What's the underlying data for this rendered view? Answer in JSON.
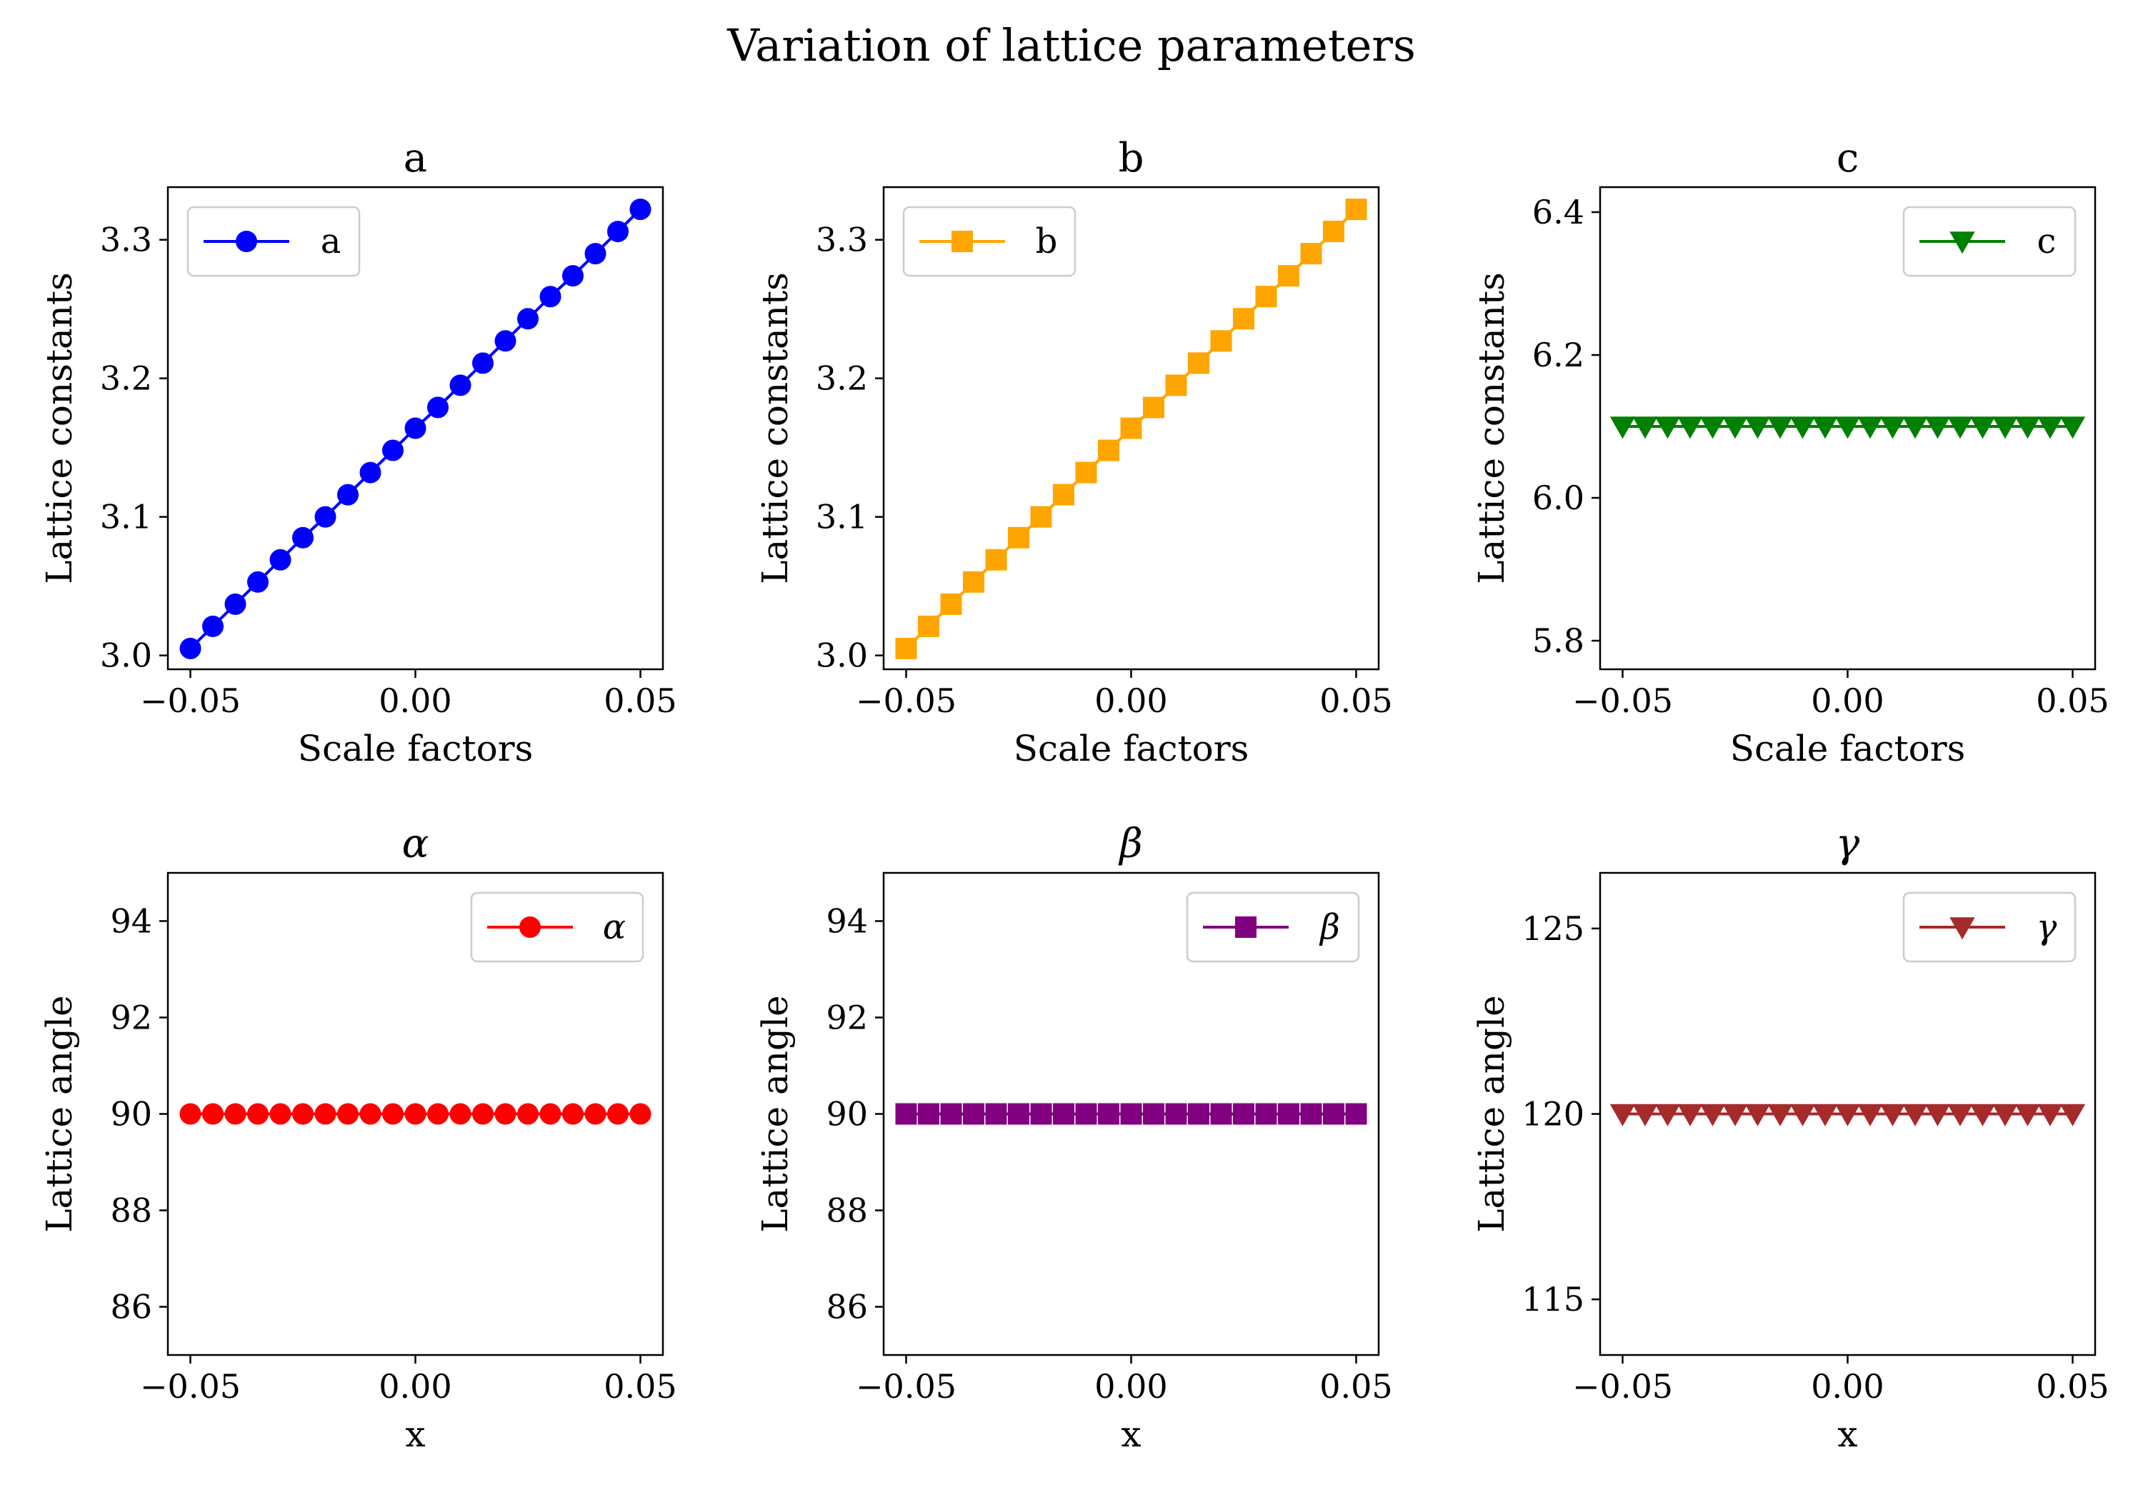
{
  "figure": {
    "suptitle": "Variation of lattice parameters"
  },
  "chart_data": [
    {
      "type": "line",
      "title": "a",
      "xlabel": "Scale factors",
      "ylabel": "Lattice constants",
      "xlim": [
        -0.055,
        0.055
      ],
      "ylim": [
        2.99,
        3.338
      ],
      "xticks": [
        "−0.05",
        "0.00",
        "0.05"
      ],
      "xtick_values": [
        -0.05,
        0.0,
        0.05
      ],
      "yticks": [
        "3.0",
        "3.1",
        "3.2",
        "3.3"
      ],
      "ytick_values": [
        3.0,
        3.1,
        3.2,
        3.3
      ],
      "legend_position": "upper-left",
      "x": [
        -0.05,
        -0.045,
        -0.04,
        -0.035,
        -0.03,
        -0.025,
        -0.02,
        -0.015,
        -0.01,
        -0.005,
        0.0,
        0.005,
        0.01,
        0.015,
        0.02,
        0.025,
        0.03,
        0.035,
        0.04,
        0.045,
        0.05
      ],
      "series": [
        {
          "name": "a",
          "color": "#0000ff",
          "marker": "circle",
          "line": true,
          "values": [
            3.005,
            3.021,
            3.037,
            3.053,
            3.069,
            3.085,
            3.1,
            3.116,
            3.132,
            3.148,
            3.164,
            3.179,
            3.195,
            3.211,
            3.227,
            3.243,
            3.259,
            3.274,
            3.29,
            3.306,
            3.322
          ]
        }
      ]
    },
    {
      "type": "line",
      "title": "b",
      "xlabel": "Scale factors",
      "ylabel": "Lattice constants",
      "xlim": [
        -0.055,
        0.055
      ],
      "ylim": [
        2.99,
        3.338
      ],
      "xticks": [
        "−0.05",
        "0.00",
        "0.05"
      ],
      "xtick_values": [
        -0.05,
        0.0,
        0.05
      ],
      "yticks": [
        "3.0",
        "3.1",
        "3.2",
        "3.3"
      ],
      "ytick_values": [
        3.0,
        3.1,
        3.2,
        3.3
      ],
      "legend_position": "upper-left",
      "x": [
        -0.05,
        -0.045,
        -0.04,
        -0.035,
        -0.03,
        -0.025,
        -0.02,
        -0.015,
        -0.01,
        -0.005,
        0.0,
        0.005,
        0.01,
        0.015,
        0.02,
        0.025,
        0.03,
        0.035,
        0.04,
        0.045,
        0.05
      ],
      "series": [
        {
          "name": "b",
          "color": "#ffa500",
          "marker": "square",
          "line": true,
          "values": [
            3.005,
            3.021,
            3.037,
            3.053,
            3.069,
            3.085,
            3.1,
            3.116,
            3.132,
            3.148,
            3.164,
            3.179,
            3.195,
            3.211,
            3.227,
            3.243,
            3.259,
            3.274,
            3.29,
            3.306,
            3.322
          ]
        }
      ]
    },
    {
      "type": "line",
      "title": "c",
      "xlabel": "Scale factors",
      "ylabel": "Lattice constants",
      "xlim": [
        -0.055,
        0.055
      ],
      "ylim": [
        5.76,
        6.435
      ],
      "xticks": [
        "−0.05",
        "0.00",
        "0.05"
      ],
      "xtick_values": [
        -0.05,
        0.0,
        0.05
      ],
      "yticks": [
        "5.8",
        "6.0",
        "6.2",
        "6.4"
      ],
      "ytick_values": [
        5.8,
        6.0,
        6.2,
        6.4
      ],
      "legend_position": "upper-right",
      "x": [
        -0.05,
        -0.045,
        -0.04,
        -0.035,
        -0.03,
        -0.025,
        -0.02,
        -0.015,
        -0.01,
        -0.005,
        0.0,
        0.005,
        0.01,
        0.015,
        0.02,
        0.025,
        0.03,
        0.035,
        0.04,
        0.045,
        0.05
      ],
      "series": [
        {
          "name": "c",
          "color": "#008000",
          "marker": "triangle-down",
          "line": true,
          "values": [
            6.1,
            6.1,
            6.1,
            6.1,
            6.1,
            6.1,
            6.1,
            6.1,
            6.1,
            6.1,
            6.1,
            6.1,
            6.1,
            6.1,
            6.1,
            6.1,
            6.1,
            6.1,
            6.1,
            6.1,
            6.1
          ]
        }
      ]
    },
    {
      "type": "line",
      "title": "α",
      "xlabel": "x",
      "ylabel": "Lattice angle",
      "xlim": [
        -0.055,
        0.055
      ],
      "ylim": [
        85.0,
        95.0
      ],
      "xticks": [
        "−0.05",
        "0.00",
        "0.05"
      ],
      "xtick_values": [
        -0.05,
        0.0,
        0.05
      ],
      "yticks": [
        "86",
        "88",
        "90",
        "92",
        "94"
      ],
      "ytick_values": [
        86,
        88,
        90,
        92,
        94
      ],
      "legend_position": "upper-right",
      "x": [
        -0.05,
        -0.045,
        -0.04,
        -0.035,
        -0.03,
        -0.025,
        -0.02,
        -0.015,
        -0.01,
        -0.005,
        0.0,
        0.005,
        0.01,
        0.015,
        0.02,
        0.025,
        0.03,
        0.035,
        0.04,
        0.045,
        0.05
      ],
      "series": [
        {
          "name": "α",
          "color": "#ff0000",
          "marker": "circle",
          "line": true,
          "values": [
            90,
            90,
            90,
            90,
            90,
            90,
            90,
            90,
            90,
            90,
            90,
            90,
            90,
            90,
            90,
            90,
            90,
            90,
            90,
            90,
            90
          ]
        }
      ]
    },
    {
      "type": "line",
      "title": "β",
      "xlabel": "x",
      "ylabel": "Lattice angle",
      "xlim": [
        -0.055,
        0.055
      ],
      "ylim": [
        85.0,
        95.0
      ],
      "xticks": [
        "−0.05",
        "0.00",
        "0.05"
      ],
      "xtick_values": [
        -0.05,
        0.0,
        0.05
      ],
      "yticks": [
        "86",
        "88",
        "90",
        "92",
        "94"
      ],
      "ytick_values": [
        86,
        88,
        90,
        92,
        94
      ],
      "legend_position": "upper-right",
      "x": [
        -0.05,
        -0.045,
        -0.04,
        -0.035,
        -0.03,
        -0.025,
        -0.02,
        -0.015,
        -0.01,
        -0.005,
        0.0,
        0.005,
        0.01,
        0.015,
        0.02,
        0.025,
        0.03,
        0.035,
        0.04,
        0.045,
        0.05
      ],
      "series": [
        {
          "name": "β",
          "color": "#800080",
          "marker": "square",
          "line": true,
          "values": [
            90,
            90,
            90,
            90,
            90,
            90,
            90,
            90,
            90,
            90,
            90,
            90,
            90,
            90,
            90,
            90,
            90,
            90,
            90,
            90,
            90
          ]
        }
      ]
    },
    {
      "type": "line",
      "title": "γ",
      "xlabel": "x",
      "ylabel": "Lattice angle",
      "xlim": [
        -0.055,
        0.055
      ],
      "ylim": [
        113.5,
        126.5
      ],
      "xticks": [
        "−0.05",
        "0.00",
        "0.05"
      ],
      "xtick_values": [
        -0.05,
        0.0,
        0.05
      ],
      "yticks": [
        "115",
        "120",
        "125"
      ],
      "ytick_values": [
        115,
        120,
        125
      ],
      "legend_position": "upper-right",
      "x": [
        -0.05,
        -0.045,
        -0.04,
        -0.035,
        -0.03,
        -0.025,
        -0.02,
        -0.015,
        -0.01,
        -0.005,
        0.0,
        0.005,
        0.01,
        0.015,
        0.02,
        0.025,
        0.03,
        0.035,
        0.04,
        0.045,
        0.05
      ],
      "series": [
        {
          "name": "γ",
          "color": "#a52a2a",
          "marker": "triangle-down",
          "line": true,
          "values": [
            120,
            120,
            120,
            120,
            120,
            120,
            120,
            120,
            120,
            120,
            120,
            120,
            120,
            120,
            120,
            120,
            120,
            120,
            120,
            120,
            120
          ]
        }
      ]
    }
  ]
}
